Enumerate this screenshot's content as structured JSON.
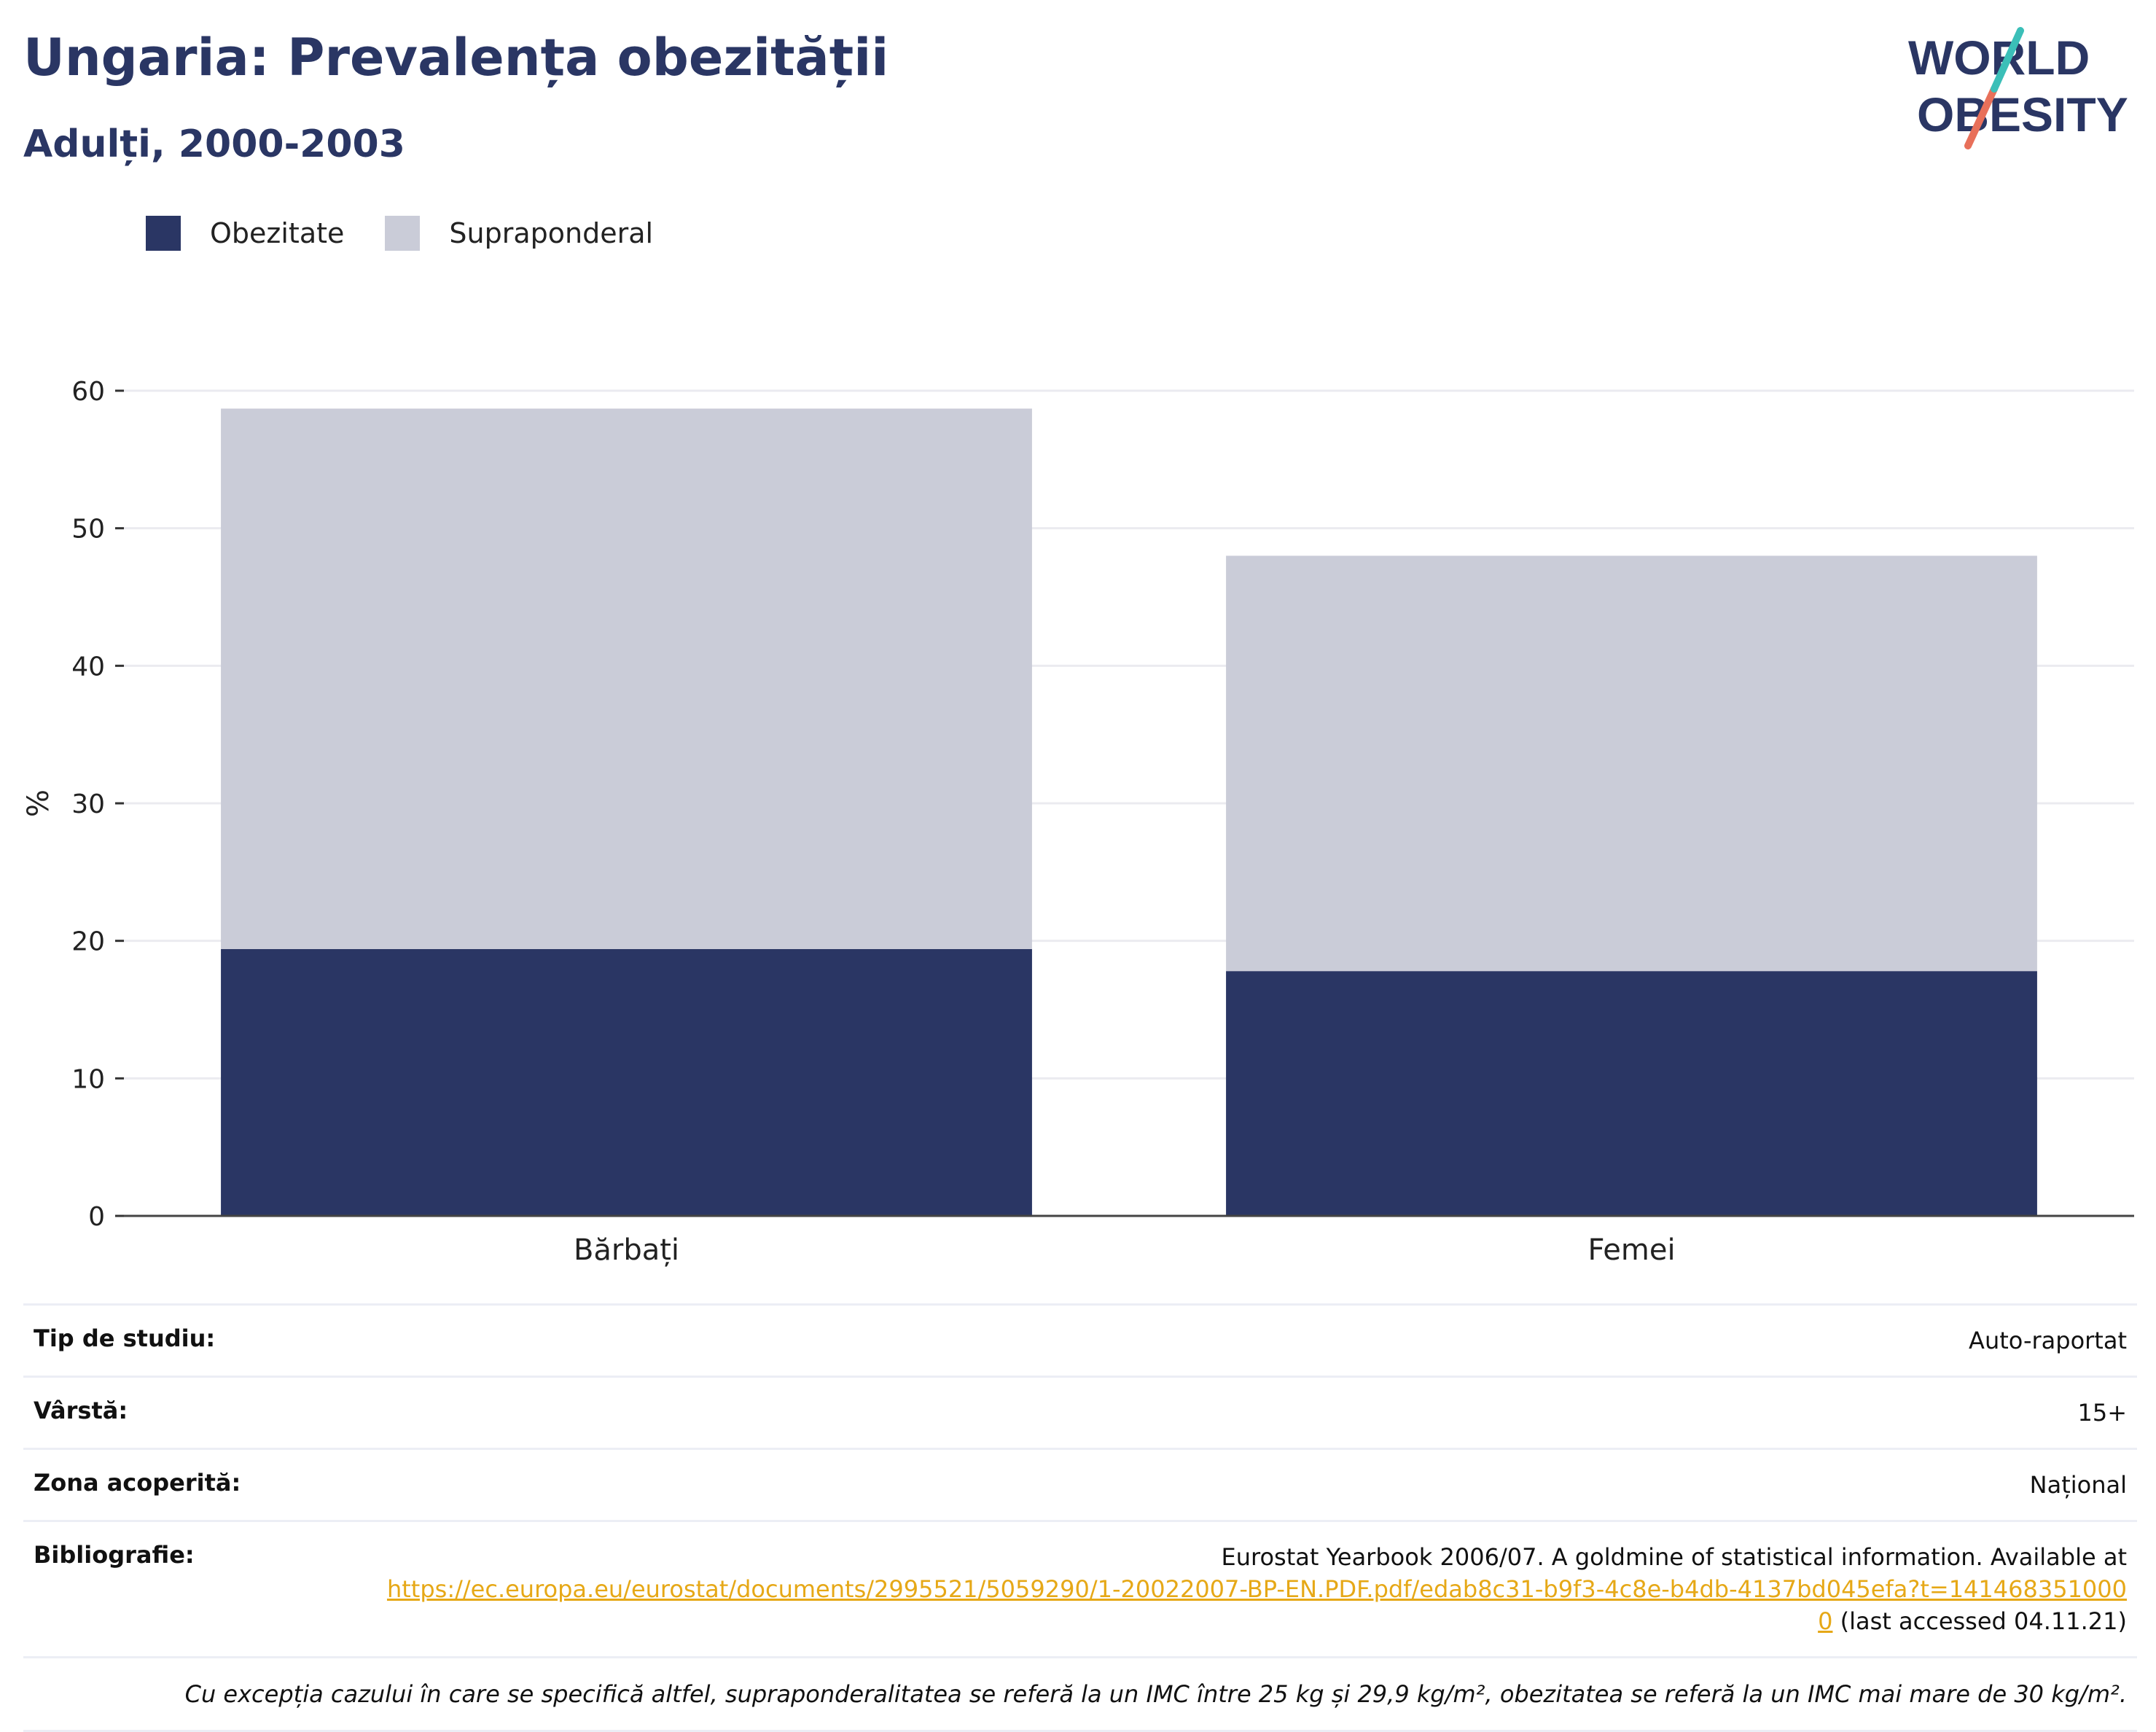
{
  "header": {
    "title": "Ungaria: Prevalența obezității",
    "subtitle": "Adulți, 2000-2003"
  },
  "logo": {
    "line1": "WORLD",
    "line2": "OBESITY"
  },
  "colors": {
    "obesity": "#2a3664",
    "overweight": "#caccd8",
    "accent_teal": "#3bbfb8",
    "accent_red": "#e8705a"
  },
  "chart_data": {
    "type": "bar",
    "stacked": true,
    "categories": [
      "Bărbați",
      "Femei"
    ],
    "series": [
      {
        "name": "Obezitate",
        "values": [
          19.4,
          17.8
        ]
      },
      {
        "name": "Supraponderal",
        "values": [
          39.3,
          30.2
        ]
      }
    ],
    "ylabel": "%",
    "ylim": [
      0,
      60
    ],
    "yticks": [
      0,
      10,
      20,
      30,
      40,
      50,
      60
    ],
    "grid": true,
    "legend": "top-left"
  },
  "info": {
    "rows": [
      {
        "label": "Tip de studiu:",
        "value": "Auto-raportat"
      },
      {
        "label": "Vârstă:",
        "value": "15+"
      },
      {
        "label": "Zona acoperită:",
        "value": "Național"
      }
    ],
    "bibliography": {
      "label": "Bibliografie:",
      "text_before": "Eurostat Yearbook 2006/07. A goldmine of statistical information. Available at",
      "link": "https://ec.europa.eu/eurostat/documents/2995521/5059290/1-20022007-BP-EN.PDF.pdf/edab8c31-b9f3-4c8e-b4db-4137bd045efa?t=1414683510000",
      "text_after": "(last accessed 04.11.21)"
    },
    "note": "Cu excepția cazului în care se specifică altfel, supraponderalitatea se referă la un IMC între 25 kg și 29,9 kg/m², obezitatea se referă la un IMC mai mare de 30 kg/m²."
  }
}
